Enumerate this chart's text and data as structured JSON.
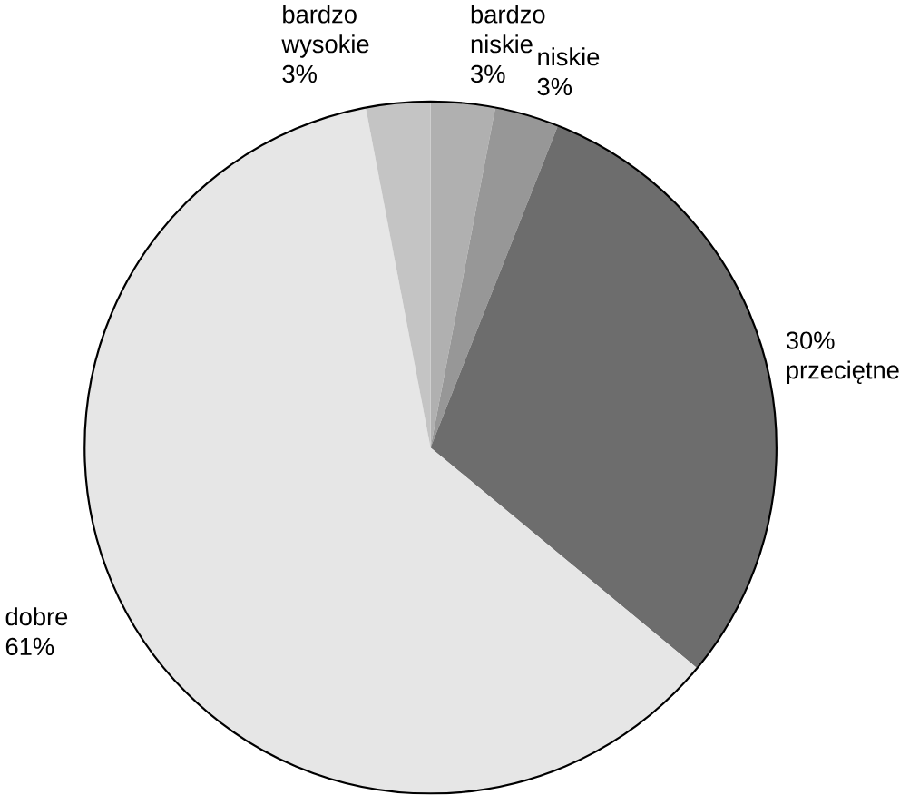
{
  "chart_data": {
    "type": "pie",
    "categories": [
      "bardzo niskie",
      "niskie",
      "przeciętne",
      "dobre",
      "bardzo wysokie"
    ],
    "values": [
      3,
      3,
      30,
      61,
      3
    ],
    "value_labels": [
      "3%",
      "3%",
      "30%",
      "61%",
      "3%"
    ],
    "colors": [
      "#b0b0b0",
      "#979797",
      "#6d6d6d",
      "#e6e6e6",
      "#c4c4c4"
    ]
  }
}
